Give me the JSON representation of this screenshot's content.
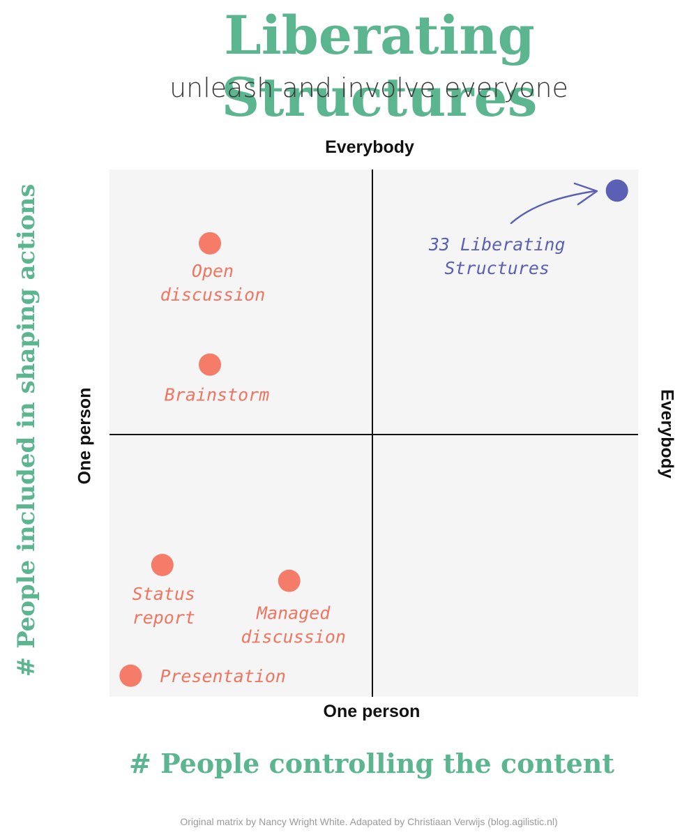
{
  "title": "Liberating Structures",
  "subtitle": "unleash and involve everyone",
  "axes": {
    "top": "Everybody",
    "bottom": "One person",
    "left": "One person",
    "right": "Everybody",
    "x_title": "# People controlling the content",
    "y_title": "# People included in shaping actions"
  },
  "colors": {
    "accent": "#5bb58f",
    "point": "#f47c68",
    "label": "#f07560",
    "highlight": "#5b60b4",
    "plot_bg": "#f5f5f5"
  },
  "chart_data": {
    "type": "scatter",
    "xlabel": "# People controlling the content",
    "ylabel": "# People included in shaping actions",
    "xlim": [
      0,
      100
    ],
    "ylim": [
      0,
      100
    ],
    "points": [
      {
        "name": "open-discussion",
        "label": [
          "Open",
          "discussion"
        ],
        "x": 19,
        "y": 86,
        "color": "coral"
      },
      {
        "name": "brainstorm",
        "label": [
          "Brainstorm"
        ],
        "x": 19,
        "y": 63,
        "color": "coral"
      },
      {
        "name": "status-report",
        "label": [
          "Status",
          "report"
        ],
        "x": 10,
        "y": 25,
        "color": "coral"
      },
      {
        "name": "managed-discussion",
        "label": [
          "Managed",
          "discussion"
        ],
        "x": 34,
        "y": 22,
        "color": "coral"
      },
      {
        "name": "presentation",
        "label": [
          "Presentation"
        ],
        "x": 4,
        "y": 4,
        "color": "coral"
      },
      {
        "name": "33-liberating-structures",
        "label": [
          "33 Liberating",
          "Structures"
        ],
        "x": 96,
        "y": 96,
        "color": "blue"
      }
    ]
  },
  "credit": "Original matrix by Nancy Wright White. Adapated by Christiaan Verwijs (blog.agilistic.nl)"
}
